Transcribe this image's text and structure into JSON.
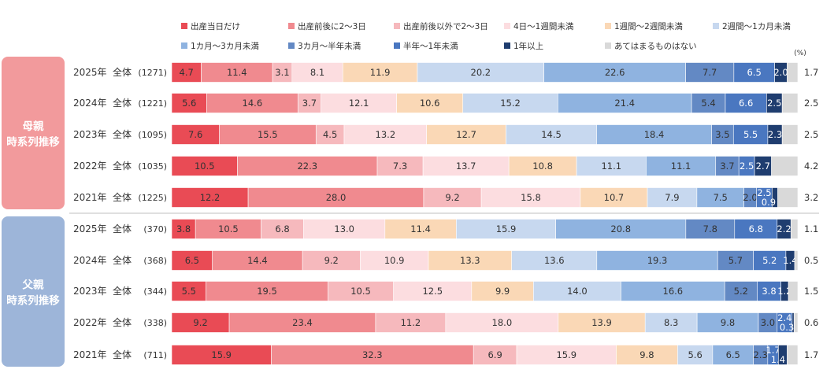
{
  "chart_data": {
    "type": "bar",
    "orientation": "horizontal",
    "stacked": true,
    "unit_label": "(%)",
    "legend_position": "top",
    "grid": false,
    "xlim": [
      0,
      100
    ],
    "legend": [
      {
        "name": "出産当日だけ",
        "color": "#e94b55"
      },
      {
        "name": "出産前後に2～3日",
        "color": "#f08a8f"
      },
      {
        "name": "出産前後以外で2～3日",
        "color": "#f6b9bd"
      },
      {
        "name": "4日～1週間未満",
        "color": "#fcdde0"
      },
      {
        "name": "1週間～2週間未満",
        "color": "#fad8b6"
      },
      {
        "name": "2週間～1カ月未満",
        "color": "#c7d8ef"
      },
      {
        "name": "1カ月～3カ月未満",
        "color": "#8fb3e0"
      },
      {
        "name": "3カ月～半年未満",
        "color": "#6389c4"
      },
      {
        "name": "半年～1年未満",
        "color": "#4a77c0"
      },
      {
        "name": "1年以上",
        "color": "#1f3d6f"
      },
      {
        "name": "あてはまるものはない",
        "color": "#d9d9d9"
      }
    ],
    "value_text_colors": [
      "#333333",
      "#333333",
      "#333333",
      "#333333",
      "#333333",
      "#333333",
      "#333333",
      "#333333",
      "#ffffff",
      "#ffffff",
      "#333333"
    ],
    "groups": [
      {
        "label_line1": "母親",
        "label_line2": "時系列推移",
        "color": "#f29a9c",
        "rows": [
          {
            "year": "2025年",
            "segment": "全体",
            "n": "(1271)",
            "values": [
              4.7,
              11.4,
              3.1,
              8.1,
              11.9,
              20.2,
              22.6,
              7.7,
              6.5,
              2.0,
              1.7
            ]
          },
          {
            "year": "2024年",
            "segment": "全体",
            "n": "(1221)",
            "values": [
              5.6,
              14.6,
              3.7,
              12.1,
              10.6,
              15.2,
              21.4,
              5.4,
              6.6,
              2.5,
              2.5
            ]
          },
          {
            "year": "2023年",
            "segment": "全体",
            "n": "(1095)",
            "values": [
              7.6,
              15.5,
              4.5,
              13.2,
              12.7,
              14.5,
              18.4,
              3.5,
              5.5,
              2.3,
              2.5
            ]
          },
          {
            "year": "2022年",
            "segment": "全体",
            "n": "(1035)",
            "values": [
              10.5,
              22.3,
              7.3,
              13.7,
              10.8,
              11.1,
              11.1,
              3.7,
              2.5,
              2.7,
              4.2
            ]
          },
          {
            "year": "2021年",
            "segment": "全体",
            "n": "(1225)",
            "values": [
              12.2,
              28.0,
              9.2,
              15.8,
              10.7,
              7.9,
              7.5,
              2.0,
              2.5,
              0.9,
              3.2
            ]
          }
        ]
      },
      {
        "label_line1": "父親",
        "label_line2": "時系列推移",
        "color": "#9db5d9",
        "rows": [
          {
            "year": "2025年",
            "segment": "全体",
            "n": "(370)",
            "values": [
              3.8,
              10.5,
              6.8,
              13.0,
              11.4,
              15.9,
              20.8,
              7.8,
              6.8,
              2.2,
              1.1
            ]
          },
          {
            "year": "2024年",
            "segment": "全体",
            "n": "(368)",
            "values": [
              6.5,
              14.4,
              9.2,
              10.9,
              13.3,
              13.6,
              19.3,
              5.7,
              5.2,
              1.4,
              0.5
            ]
          },
          {
            "year": "2023年",
            "segment": "全体",
            "n": "(344)",
            "values": [
              5.5,
              19.5,
              10.5,
              12.5,
              9.9,
              14.0,
              16.6,
              5.2,
              3.8,
              1.2,
              1.5
            ]
          },
          {
            "year": "2022年",
            "segment": "全体",
            "n": "(338)",
            "values": [
              9.2,
              23.4,
              11.2,
              18.0,
              13.9,
              8.3,
              9.8,
              3.0,
              2.4,
              0.3,
              0.6
            ]
          },
          {
            "year": "2021年",
            "segment": "全体",
            "n": "(711)",
            "values": [
              15.9,
              32.3,
              6.9,
              15.9,
              9.8,
              5.6,
              6.5,
              2.3,
              1.7,
              1.4,
              1.7
            ]
          }
        ]
      }
    ]
  }
}
